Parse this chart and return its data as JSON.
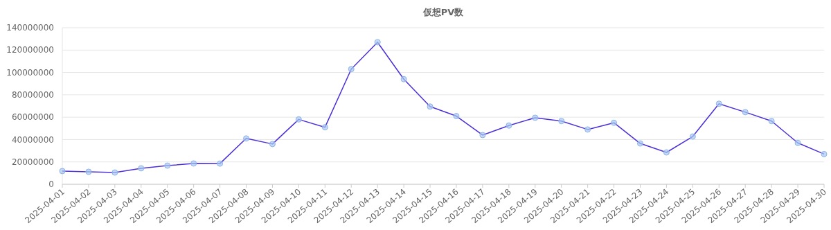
{
  "chart_data": {
    "type": "line",
    "title": "仮想PV数",
    "categories": [
      "2025-04-01",
      "2025-04-02",
      "2025-04-03",
      "2025-04-04",
      "2025-04-05",
      "2025-04-06",
      "2025-04-07",
      "2025-04-08",
      "2025-04-09",
      "2025-04-10",
      "2025-04-11",
      "2025-04-12",
      "2025-04-13",
      "2025-04-14",
      "2025-04-15",
      "2025-04-16",
      "2025-04-17",
      "2025-04-18",
      "2025-04-19",
      "2025-04-20",
      "2025-04-21",
      "2025-04-22",
      "2025-04-23",
      "2025-04-24",
      "2025-04-25",
      "2025-04-26",
      "2025-04-27",
      "2025-04-28",
      "2025-04-29",
      "2025-04-30"
    ],
    "series": [
      {
        "color": "#4b30d8",
        "values": [
          11800000,
          11200000,
          10500000,
          14300000,
          16700000,
          18600000,
          18500000,
          41000000,
          36000000,
          58000000,
          51000000,
          103000000,
          127000000,
          94000000,
          69500000,
          61000000,
          44000000,
          52500000,
          59500000,
          56500000,
          49000000,
          55000000,
          36500000,
          28500000,
          42700000,
          72000000,
          64500000,
          56500000,
          37000000,
          27000000
        ]
      }
    ],
    "ylim": [
      0,
      140000000
    ],
    "yticks": [
      0,
      20000000,
      40000000,
      60000000,
      80000000,
      100000000,
      120000000,
      140000000
    ],
    "grid": "y",
    "marker": "circle",
    "line_style": "solid"
  }
}
